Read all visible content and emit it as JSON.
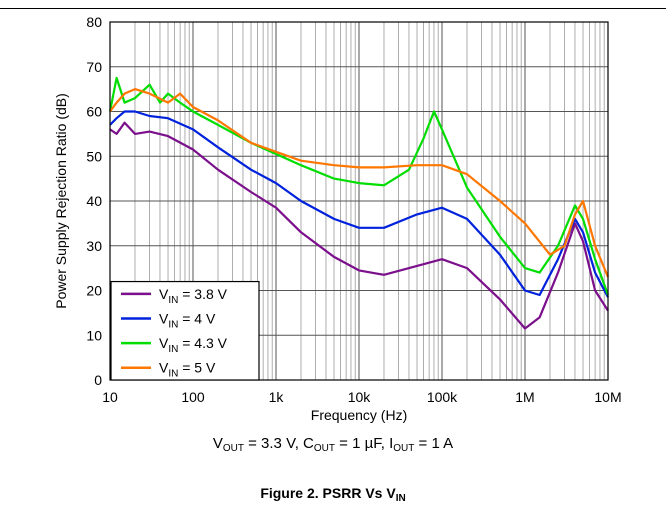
{
  "chart_data": {
    "type": "line",
    "x_scale": "log",
    "xlim": [
      10,
      10000000
    ],
    "ylim": [
      0,
      80
    ],
    "xlabel": "Frequency (Hz)",
    "ylabel": "Power Supply Rejection Ratio (dB)",
    "x_ticks": [
      {
        "value": 10,
        "label": "10"
      },
      {
        "value": 100,
        "label": "100"
      },
      {
        "value": 1000,
        "label": "1k"
      },
      {
        "value": 10000,
        "label": "10k"
      },
      {
        "value": 100000,
        "label": "100k"
      },
      {
        "value": 1000000,
        "label": "1M"
      },
      {
        "value": 10000000,
        "label": "10M"
      }
    ],
    "y_ticks": [
      0,
      10,
      20,
      30,
      40,
      50,
      60,
      70,
      80
    ],
    "grid": true,
    "legend_position": "bottom-left",
    "series": [
      {
        "name": "VIN = 3.8 V",
        "label_main": "V",
        "label_sub": "IN",
        "label_rest": " = 3.8 V",
        "color": "#7b0f8c",
        "points": [
          [
            10,
            56
          ],
          [
            12,
            55
          ],
          [
            15,
            57.5
          ],
          [
            20,
            55
          ],
          [
            30,
            55.5
          ],
          [
            50,
            54.5
          ],
          [
            100,
            51.5
          ],
          [
            200,
            47
          ],
          [
            500,
            42
          ],
          [
            1000,
            38.5
          ],
          [
            2000,
            33
          ],
          [
            5000,
            27.5
          ],
          [
            10000,
            24.5
          ],
          [
            20000,
            23.5
          ],
          [
            50000,
            25.5
          ],
          [
            100000,
            27
          ],
          [
            200000,
            25
          ],
          [
            500000,
            18
          ],
          [
            1000000,
            11.5
          ],
          [
            1500000,
            14
          ],
          [
            2500000,
            24
          ],
          [
            4000000,
            35
          ],
          [
            5000000,
            31
          ],
          [
            7000000,
            20
          ],
          [
            10000000,
            15.5
          ]
        ]
      },
      {
        "name": "VIN = 4 V",
        "label_main": "V",
        "label_sub": "IN",
        "label_rest": " = 4 V",
        "color": "#0022dd",
        "points": [
          [
            10,
            57
          ],
          [
            12,
            58.5
          ],
          [
            15,
            60
          ],
          [
            20,
            60
          ],
          [
            30,
            59
          ],
          [
            50,
            58.5
          ],
          [
            100,
            56
          ],
          [
            200,
            52
          ],
          [
            500,
            47
          ],
          [
            1000,
            44
          ],
          [
            2000,
            40
          ],
          [
            5000,
            36
          ],
          [
            10000,
            34
          ],
          [
            20000,
            34
          ],
          [
            50000,
            37
          ],
          [
            100000,
            38.5
          ],
          [
            200000,
            36
          ],
          [
            500000,
            28
          ],
          [
            1000000,
            20
          ],
          [
            1500000,
            19
          ],
          [
            2500000,
            27
          ],
          [
            4000000,
            36
          ],
          [
            5000000,
            33
          ],
          [
            7000000,
            24
          ],
          [
            10000000,
            18.5
          ]
        ]
      },
      {
        "name": "VIN = 4.3 V",
        "label_main": "V",
        "label_sub": "IN",
        "label_rest": " = 4.3 V",
        "color": "#00dd00",
        "points": [
          [
            10,
            60
          ],
          [
            12,
            67.5
          ],
          [
            15,
            62
          ],
          [
            20,
            63
          ],
          [
            30,
            66
          ],
          [
            40,
            62
          ],
          [
            50,
            64
          ],
          [
            70,
            62
          ],
          [
            100,
            60
          ],
          [
            200,
            57
          ],
          [
            500,
            53
          ],
          [
            1000,
            50.5
          ],
          [
            2000,
            48
          ],
          [
            5000,
            45
          ],
          [
            10000,
            44
          ],
          [
            20000,
            43.5
          ],
          [
            40000,
            47
          ],
          [
            60000,
            54
          ],
          [
            80000,
            60
          ],
          [
            100000,
            56
          ],
          [
            200000,
            43
          ],
          [
            500000,
            32
          ],
          [
            1000000,
            25
          ],
          [
            1500000,
            24
          ],
          [
            2500000,
            30
          ],
          [
            4000000,
            39
          ],
          [
            5000000,
            36
          ],
          [
            7000000,
            27
          ],
          [
            10000000,
            19
          ]
        ]
      },
      {
        "name": "VIN = 5 V",
        "label_main": "V",
        "label_sub": "IN",
        "label_rest": " = 5 V",
        "color": "#ff7700",
        "points": [
          [
            10,
            60
          ],
          [
            12,
            62
          ],
          [
            15,
            64
          ],
          [
            20,
            65
          ],
          [
            30,
            64
          ],
          [
            50,
            62
          ],
          [
            70,
            64
          ],
          [
            100,
            61
          ],
          [
            200,
            58
          ],
          [
            500,
            53
          ],
          [
            1000,
            51
          ],
          [
            2000,
            49
          ],
          [
            5000,
            48
          ],
          [
            10000,
            47.5
          ],
          [
            20000,
            47.5
          ],
          [
            50000,
            48
          ],
          [
            100000,
            48
          ],
          [
            200000,
            46
          ],
          [
            500000,
            40
          ],
          [
            1000000,
            35
          ],
          [
            2000000,
            28
          ],
          [
            3000000,
            30
          ],
          [
            4000000,
            37
          ],
          [
            5000000,
            40
          ],
          [
            7000000,
            30
          ],
          [
            10000000,
            23
          ]
        ]
      }
    ]
  },
  "condition": {
    "vout_main": "V",
    "vout_sub": "OUT",
    "vout_rest": " = 3.3 V, ",
    "cout_main": "C",
    "cout_sub": "OUT",
    "cout_rest": " = 1 µF, ",
    "iout_main": "I",
    "iout_sub": "OUT",
    "iout_rest": " = 1 A"
  },
  "figure": {
    "title_main": "Figure 2. PSRR Vs V",
    "title_sub": "IN"
  }
}
